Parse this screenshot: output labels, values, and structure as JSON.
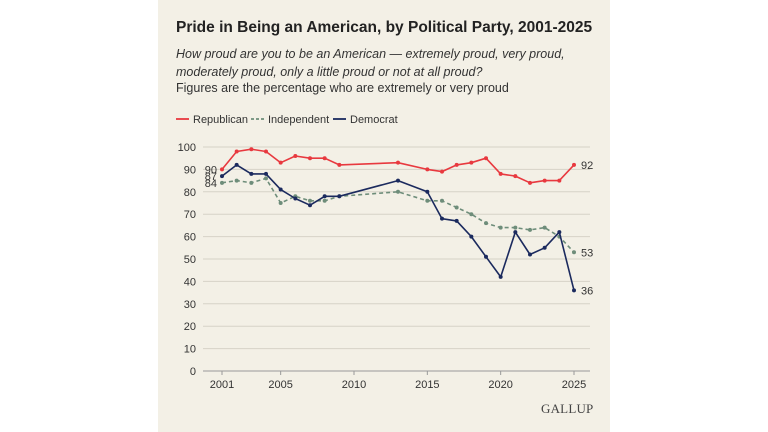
{
  "title": "Pride in Being an American, by Political Party, 2001-2025",
  "subtitle": "How proud are you to be an American — extremely proud, very proud, moderately proud, only a little proud or not at all proud?",
  "note": "Figures are the percentage who are extremely or very proud",
  "source_logo": "GALLUP",
  "colors": {
    "background": "#f3f0e6",
    "republican": "#e8393f",
    "independent": "#6e8d7a",
    "democrat": "#1b2a5e",
    "grid": "#d6d2c7"
  },
  "chart_data": {
    "type": "line",
    "title": "Pride in Being an American, by Political Party, 2001-2025",
    "xlabel": "",
    "ylabel": "",
    "ylim": [
      0,
      100
    ],
    "yticks": [
      0,
      10,
      20,
      30,
      40,
      50,
      60,
      70,
      80,
      90,
      100
    ],
    "xlim": [
      2001,
      2025
    ],
    "xticks": [
      2001,
      2005,
      2010,
      2015,
      2020,
      2025
    ],
    "grid": true,
    "legend": "top-left",
    "series": [
      {
        "name": "Republican",
        "style": "solid",
        "color": "#e8393f",
        "x": [
          2001,
          2002,
          2003,
          2004,
          2005,
          2006,
          2007,
          2008,
          2009,
          2013,
          2015,
          2016,
          2017,
          2018,
          2019,
          2020,
          2021,
          2022,
          2023,
          2024,
          2025
        ],
        "y": [
          90,
          98,
          99,
          98,
          93,
          96,
          95,
          95,
          92,
          93,
          90,
          89,
          92,
          93,
          95,
          88,
          87,
          84,
          85,
          85,
          92
        ],
        "start_label": "90",
        "end_label": "92"
      },
      {
        "name": "Independent",
        "style": "dashed",
        "color": "#6e8d7a",
        "x": [
          2001,
          2002,
          2003,
          2004,
          2005,
          2006,
          2007,
          2008,
          2009,
          2013,
          2015,
          2016,
          2017,
          2018,
          2019,
          2020,
          2021,
          2022,
          2023,
          2024,
          2025
        ],
        "y": [
          84,
          85,
          84,
          86,
          75,
          78,
          76,
          76,
          78,
          80,
          76,
          76,
          73,
          70,
          66,
          64,
          64,
          63,
          64,
          60,
          53
        ],
        "start_label": "84",
        "end_label": "53"
      },
      {
        "name": "Democrat",
        "style": "solid",
        "color": "#1b2a5e",
        "x": [
          2001,
          2002,
          2003,
          2004,
          2005,
          2006,
          2007,
          2008,
          2009,
          2013,
          2015,
          2016,
          2017,
          2018,
          2019,
          2020,
          2021,
          2022,
          2023,
          2024,
          2025
        ],
        "y": [
          87,
          92,
          88,
          88,
          81,
          77,
          74,
          78,
          78,
          85,
          80,
          68,
          67,
          60,
          51,
          42,
          62,
          52,
          55,
          62,
          36
        ],
        "start_label": "87",
        "end_label": "36"
      }
    ]
  }
}
